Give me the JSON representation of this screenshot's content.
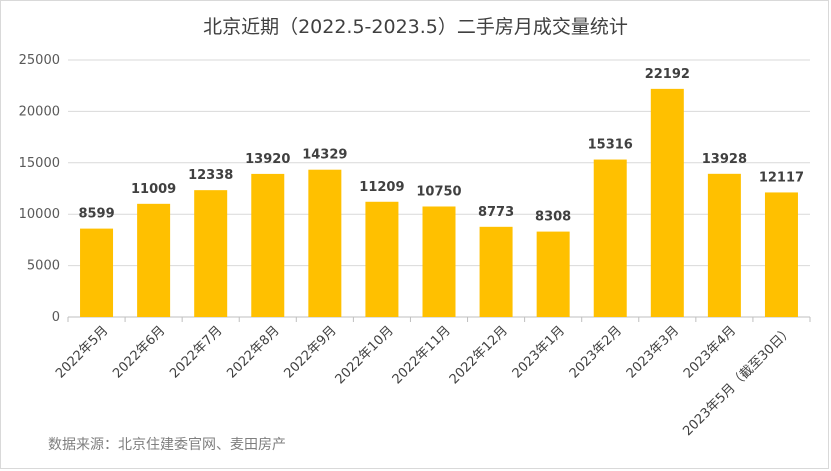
{
  "chart_data": {
    "type": "bar",
    "title": "北京近期（2022.5-2023.5）二手房月成交量统计",
    "categories": [
      "2022年5月",
      "2022年6月",
      "2022年7月",
      "2022年8月",
      "2022年9月",
      "2022年10月",
      "2022年11月",
      "2022年12月",
      "2023年1月",
      "2023年2月",
      "2023年3月",
      "2023年4月",
      "2023年5月（截至30日）"
    ],
    "values": [
      8599,
      11009,
      12338,
      13920,
      14329,
      11209,
      10750,
      8773,
      8308,
      15316,
      22192,
      13928,
      12117
    ],
    "ylim": [
      0,
      25000
    ],
    "yticks": [
      "0",
      "5000",
      "10000",
      "15000",
      "20000",
      "25000"
    ],
    "grid": true,
    "legend": "none",
    "bar_color": "#FFC000",
    "source": "数据来源：北京住建委官网、麦田房产"
  }
}
